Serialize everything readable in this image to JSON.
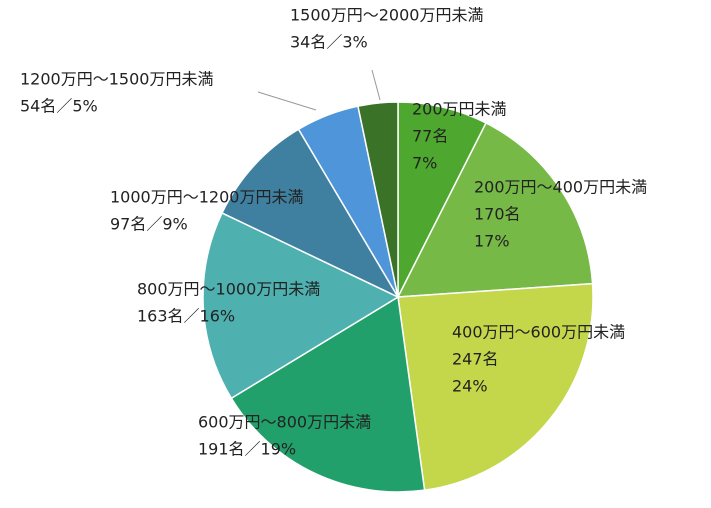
{
  "chart_data": {
    "type": "pie",
    "categories": [
      "200万円未満",
      "200万円～400万円未満",
      "400万円～600万円未満",
      "600万円～800万円未満",
      "800万円～1000万円未満",
      "1000万円～1200万円未満",
      "1200万円～1500万円未満",
      "1500万円～2000万円未満"
    ],
    "values": [
      77,
      170,
      247,
      191,
      163,
      97,
      54,
      34
    ],
    "value_labels": [
      [
        "77名",
        "7%"
      ],
      [
        "170名",
        "17%"
      ],
      [
        "247名",
        "24%"
      ],
      [
        "191名／19%"
      ],
      [
        "163名／16%"
      ],
      [
        "97名／9%"
      ],
      [
        "54名／5%"
      ],
      [
        "34名／3%"
      ]
    ],
    "colors": [
      "#4ea72e",
      "#76b947",
      "#c4d64a",
      "#22a06b",
      "#4fb0b0",
      "#3f80a0",
      "#4e95d9",
      "#3a7228"
    ]
  }
}
